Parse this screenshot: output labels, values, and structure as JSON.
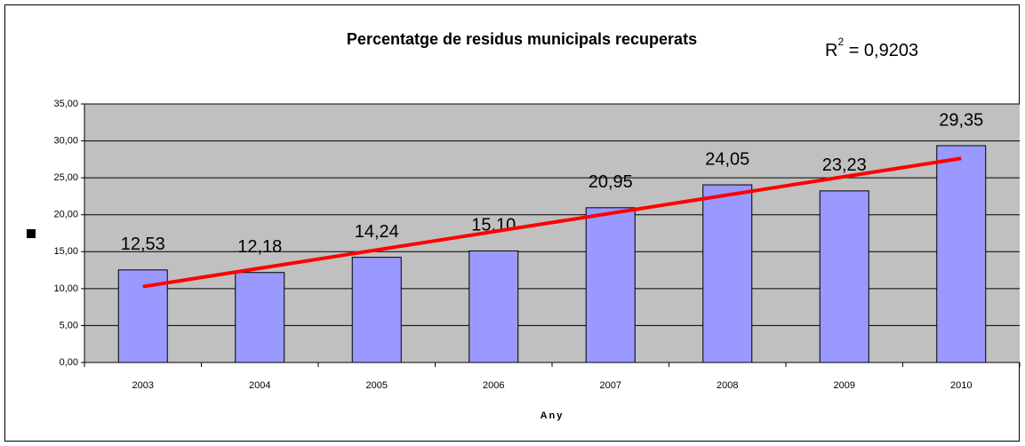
{
  "chart_data": {
    "type": "bar",
    "title": "Percentatge de residus municipals recuperats",
    "x_label": "Any",
    "categories": [
      "2003",
      "2004",
      "2005",
      "2006",
      "2007",
      "2008",
      "2009",
      "2010"
    ],
    "values": [
      12.53,
      12.18,
      14.24,
      15.1,
      20.95,
      24.05,
      23.23,
      29.35
    ],
    "value_labels": [
      "12,53",
      "12,18",
      "14,24",
      "15,10",
      "20,95",
      "24,05",
      "23,23",
      "29,35"
    ],
    "color": "#9999ff",
    "ylim": [
      0,
      35
    ],
    "yticks": [
      {
        "value": 0,
        "label": "0,00"
      },
      {
        "value": 5,
        "label": "5,00"
      },
      {
        "value": 10,
        "label": "10,00"
      },
      {
        "value": 15,
        "label": "15,00"
      },
      {
        "value": 20,
        "label": "20,00"
      },
      {
        "value": 25,
        "label": "25,00"
      },
      {
        "value": 30,
        "label": "30,00"
      },
      {
        "value": 35,
        "label": "35,00"
      }
    ],
    "grid": true,
    "trendline": {
      "type": "linear",
      "color": "#ff0000",
      "r2_label": {
        "base": "R",
        "sup": "2",
        "rest": " = 0,9203"
      }
    }
  }
}
